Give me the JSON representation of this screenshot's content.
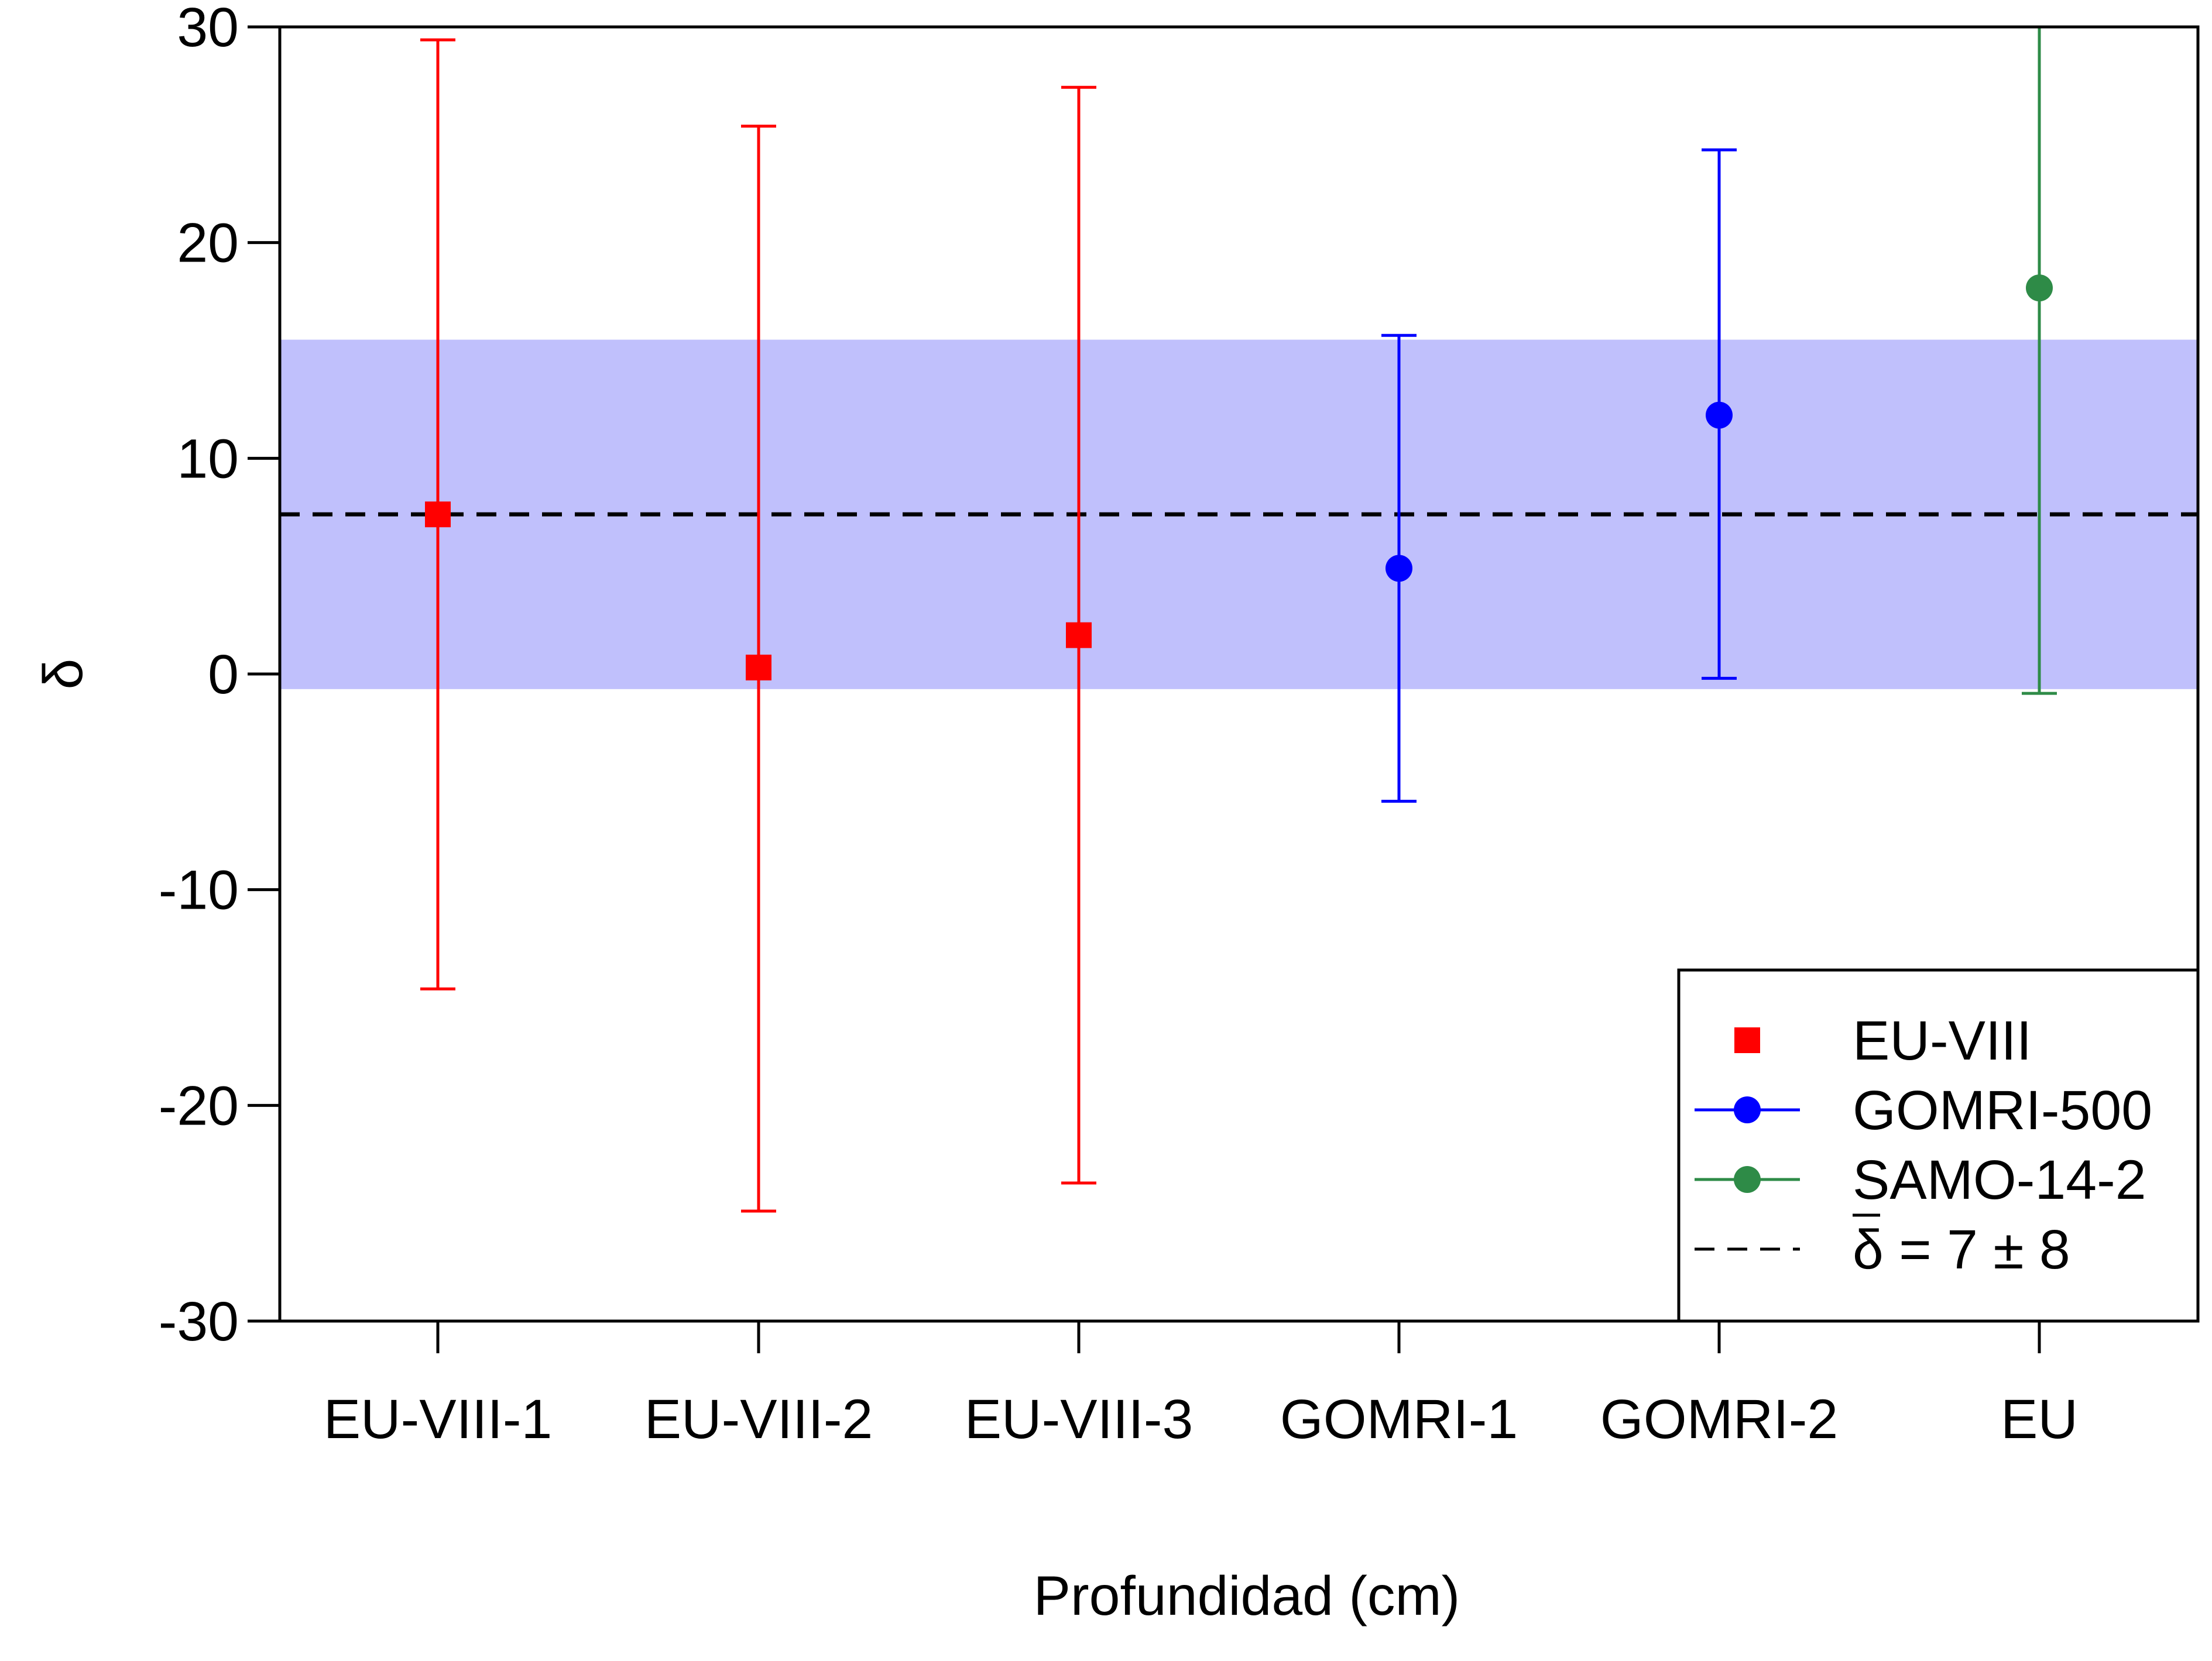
{
  "chart_data": {
    "type": "scatter",
    "title": "",
    "xlabel": "Profundidad (cm)",
    "ylabel": "δ",
    "categories": [
      "EU-VIII-1",
      "EU-VIII-2",
      "EU-VIII-3",
      "GOMRI-1",
      "GOMRI-2",
      "EU"
    ],
    "ylim": [
      -30,
      30
    ],
    "yticks": [
      "-30",
      "-20",
      "-10",
      "0",
      "10",
      "20",
      "30"
    ],
    "grid": false,
    "legend_position": "bottom-right",
    "series": [
      {
        "name": "EU-VIII",
        "color": "#ff0000",
        "marker": "square",
        "points": [
          {
            "category": "EU-VIII-1",
            "y": 7.4,
            "low": -14.6,
            "high": 29.4
          },
          {
            "category": "EU-VIII-2",
            "y": 0.3,
            "low": -24.9,
            "high": 25.4
          },
          {
            "category": "EU-VIII-3",
            "y": 1.8,
            "low": -23.6,
            "high": 27.2
          }
        ]
      },
      {
        "name": "GOMRI-500",
        "color": "#0000ff",
        "marker": "circle",
        "points": [
          {
            "category": "GOMRI-1",
            "y": 4.9,
            "low": -5.9,
            "high": 15.7
          },
          {
            "category": "GOMRI-2",
            "y": 12.0,
            "low": -0.2,
            "high": 24.3
          }
        ]
      },
      {
        "name": "SAMO-14-2",
        "color": "#2e8b47",
        "marker": "circle",
        "points": [
          {
            "category": "EU",
            "y": 17.9,
            "low": -0.9,
            "high": 31.0
          }
        ]
      }
    ],
    "mean_line": {
      "value": 7.4,
      "style": "dashed",
      "color": "#000000"
    },
    "band": {
      "low": -0.7,
      "high": 15.5,
      "color": "#c0c0fc"
    },
    "legend": {
      "entries": [
        {
          "label": "EU-VIII",
          "color": "#ff0000",
          "symbol": "square",
          "line": false
        },
        {
          "label": "GOMRI-500",
          "color": "#0000ff",
          "symbol": "circle",
          "line": true
        },
        {
          "label": "SAMO-14-2",
          "color": "#2e8b47",
          "symbol": "circle",
          "line": true
        },
        {
          "label_prefix": "δ",
          "label_suffix": " = 7 ± 8",
          "color": "#000000",
          "symbol": "dash",
          "line": true
        }
      ]
    }
  }
}
